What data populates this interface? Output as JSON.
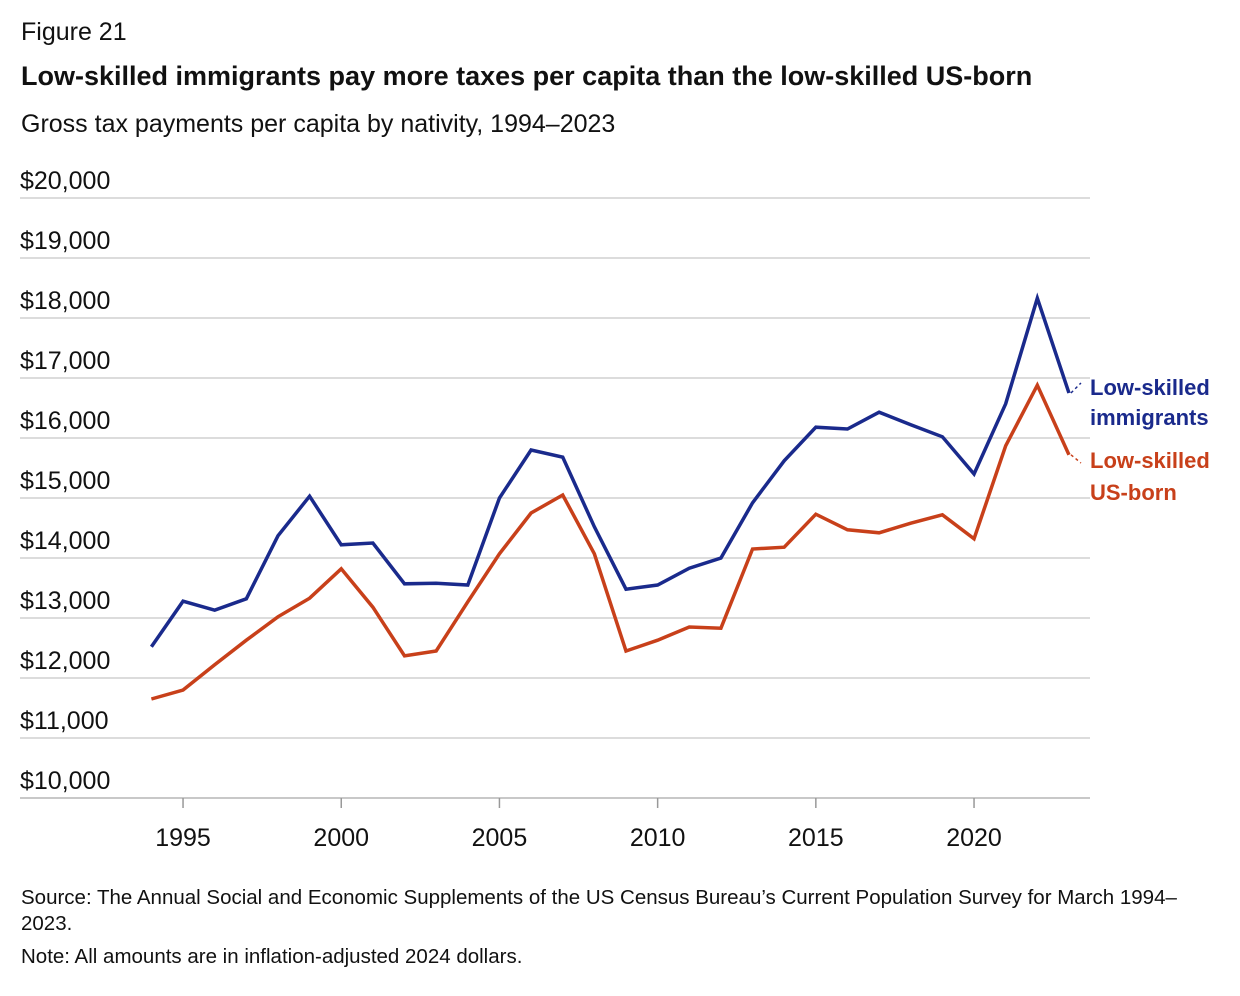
{
  "figure_label": "Figure 21",
  "title": "Low-skilled immigrants pay more taxes per capita than the low-skilled US-born",
  "subtitle": "Gross tax payments per capita by nativity, 1994–2023",
  "source": "Source: The Annual Social and Economic Supplements of the US Census Bureau’s Current Population Survey for March 1994–2023.",
  "note": "Note: All amounts are in inflation-adjusted 2024 dollars.",
  "chart_data": {
    "type": "line",
    "title": "Low-skilled immigrants pay more taxes per capita than the low-skilled US-born",
    "subtitle": "Gross tax payments per capita by nativity, 1994–2023",
    "xlabel": "",
    "ylabel": "",
    "ylim": [
      10000,
      20000
    ],
    "xlim": [
      1994,
      2023
    ],
    "grid": "horizontal",
    "legend": "direct labels at right",
    "y_ticks": [
      "$10,000",
      "$11,000",
      "$12,000",
      "$13,000",
      "$14,000",
      "$15,000",
      "$16,000",
      "$17,000",
      "$18,000",
      "$19,000",
      "$20,000"
    ],
    "y_tick_values": [
      10000,
      11000,
      12000,
      13000,
      14000,
      15000,
      16000,
      17000,
      18000,
      19000,
      20000
    ],
    "x_ticks": [
      "1995",
      "2000",
      "2005",
      "2010",
      "2015",
      "2020"
    ],
    "x_tick_values": [
      1995,
      2000,
      2005,
      2010,
      2015,
      2020
    ],
    "x": [
      1994,
      1995,
      1996,
      1997,
      1998,
      1999,
      2000,
      2001,
      2002,
      2003,
      2004,
      2005,
      2006,
      2007,
      2008,
      2009,
      2010,
      2011,
      2012,
      2013,
      2014,
      2015,
      2016,
      2017,
      2018,
      2019,
      2020,
      2021,
      2022,
      2023
    ],
    "series": [
      {
        "name": "Low-skilled immigrants",
        "label_lines": [
          "Low-skilled",
          "immigrants"
        ],
        "color": "#1a2a8c",
        "values": [
          12520,
          13280,
          13130,
          13320,
          14370,
          15030,
          14220,
          14250,
          13570,
          13580,
          13550,
          15000,
          15800,
          15680,
          14520,
          13480,
          13550,
          13830,
          14000,
          14920,
          15620,
          16180,
          16150,
          16430,
          16220,
          16020,
          15400,
          16570,
          18330,
          16750
        ]
      },
      {
        "name": "Low-skilled US-born",
        "label_lines": [
          "Low-skilled",
          "US-born"
        ],
        "color": "#c8401a",
        "values": [
          11650,
          11800,
          12220,
          12630,
          13020,
          13330,
          13820,
          13180,
          12370,
          12450,
          13270,
          14070,
          14750,
          15050,
          14070,
          12450,
          12630,
          12850,
          12830,
          14150,
          14180,
          14730,
          14470,
          14420,
          14580,
          14720,
          14320,
          15870,
          16880,
          15720
        ]
      }
    ]
  }
}
